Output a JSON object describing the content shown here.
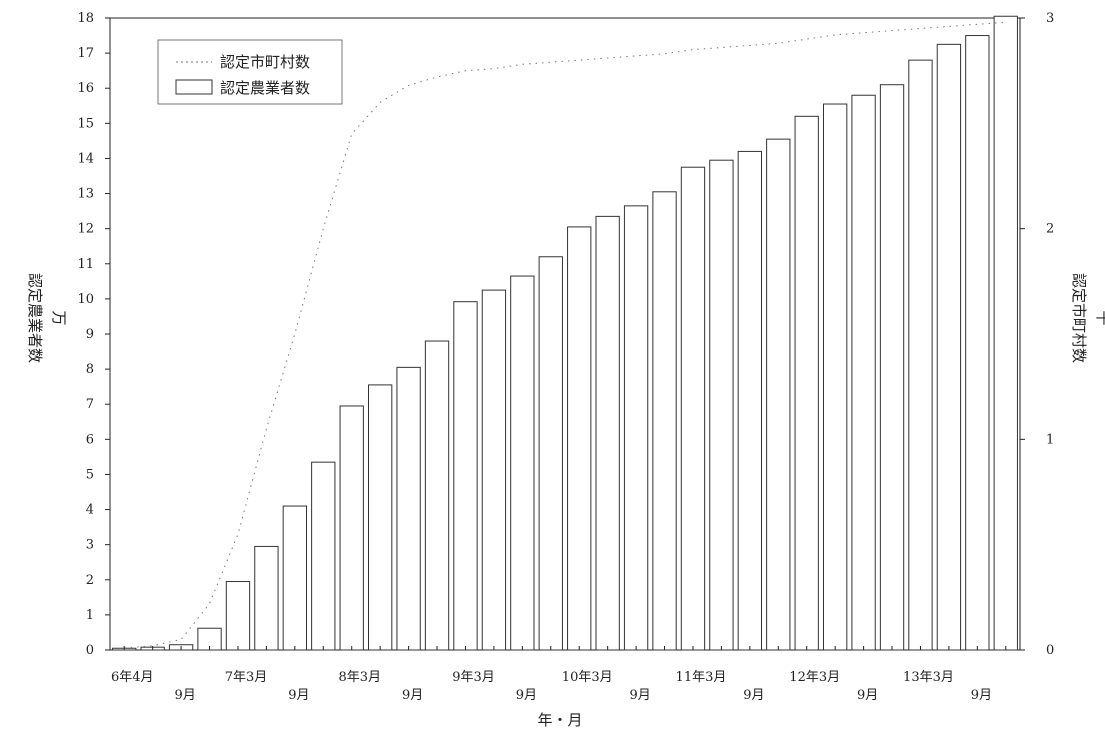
{
  "chart_data": {
    "type": "bar",
    "categories": [
      "6年4月",
      "",
      "9月",
      "",
      "7年3月",
      "",
      "9月",
      "",
      "8年3月",
      "",
      "9月",
      "",
      "9年3月",
      "",
      "9月",
      "",
      "10年3月",
      "",
      "9月",
      "",
      "11年3月",
      "",
      "9月",
      "",
      "12年3月",
      "",
      "9月",
      "",
      "13年3月",
      "",
      "9月",
      ""
    ],
    "series": [
      {
        "name": "認定農業者数",
        "type": "bar",
        "axis": "left",
        "values": [
          0.05,
          0.08,
          0.15,
          0.62,
          1.95,
          2.95,
          4.1,
          5.35,
          6.95,
          7.55,
          8.05,
          8.8,
          9.92,
          10.25,
          10.65,
          11.2,
          12.05,
          12.35,
          12.65,
          13.05,
          13.75,
          13.95,
          14.2,
          14.55,
          15.2,
          15.55,
          15.8,
          16.1,
          16.8,
          17.25,
          17.5,
          18.05
        ]
      },
      {
        "name": "認定市町村数",
        "type": "line",
        "axis": "right",
        "values": [
          0.01,
          0.02,
          0.05,
          0.22,
          0.55,
          1.05,
          1.5,
          2.0,
          2.45,
          2.6,
          2.68,
          2.72,
          2.75,
          2.76,
          2.78,
          2.79,
          2.8,
          2.81,
          2.82,
          2.83,
          2.85,
          2.86,
          2.87,
          2.88,
          2.9,
          2.92,
          2.93,
          2.94,
          2.95,
          2.96,
          2.97,
          2.98
        ]
      }
    ],
    "y_left": {
      "label": "認定農業者数",
      "unit": "万",
      "ylim": [
        0,
        18
      ],
      "ticks": [
        "0",
        "1",
        "2",
        "3",
        "4",
        "5",
        "6",
        "7",
        "8",
        "9",
        "10",
        "11",
        "12",
        "13",
        "14",
        "15",
        "16",
        "17",
        "18"
      ]
    },
    "y_right": {
      "label": "認定市町村数",
      "unit": "千",
      "ylim": [
        0,
        3
      ],
      "ticks": [
        "0",
        "1",
        "2",
        "3"
      ]
    },
    "xlabel": "年・月",
    "x_tick_labels_row1": [
      "6年4月",
      "7年3月",
      "8年3月",
      "9年3月",
      "10年3月",
      "11年3月",
      "12年3月",
      "13年3月"
    ],
    "x_tick_labels_row2": [
      "9月",
      "9月",
      "9月",
      "9月",
      "9月",
      "9月",
      "9月",
      "9月"
    ],
    "legend": {
      "position": "top-left",
      "entries": [
        "認定市町村数",
        "認定農業者数"
      ]
    },
    "colors": {
      "bar_stroke": "#333333",
      "line": "#777777",
      "axis": "#222222"
    }
  }
}
